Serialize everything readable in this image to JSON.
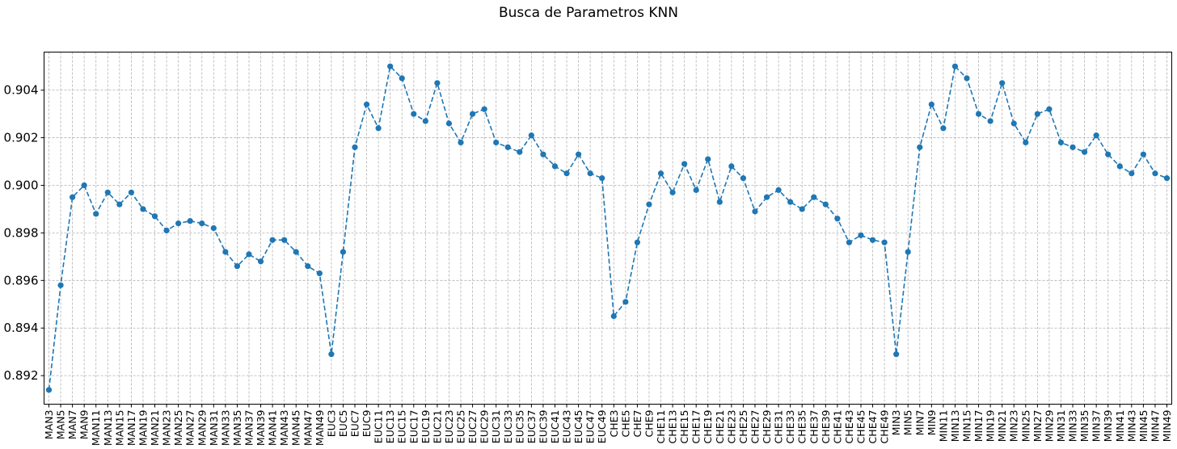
{
  "chart_data": {
    "type": "line",
    "title": "Busca de Parametros KNN",
    "xlabel": "",
    "ylabel": "",
    "ylim": [
      0.8908,
      0.9056
    ],
    "yticks": [
      "0.892",
      "0.894",
      "0.896",
      "0.898",
      "0.900",
      "0.902",
      "0.904"
    ],
    "grid": true,
    "marker": "circle",
    "line_style": "dashed",
    "color": "#1f77b4",
    "categories": [
      "MAN3",
      "MAN5",
      "MAN7",
      "MAN9",
      "MAN11",
      "MAN13",
      "MAN15",
      "MAN17",
      "MAN19",
      "MAN21",
      "MAN23",
      "MAN25",
      "MAN27",
      "MAN29",
      "MAN31",
      "MAN33",
      "MAN35",
      "MAN37",
      "MAN39",
      "MAN41",
      "MAN43",
      "MAN45",
      "MAN47",
      "MAN49",
      "EUC3",
      "EUC5",
      "EUC7",
      "EUC9",
      "EUC11",
      "EUC13",
      "EUC15",
      "EUC17",
      "EUC19",
      "EUC21",
      "EUC23",
      "EUC25",
      "EUC27",
      "EUC29",
      "EUC31",
      "EUC33",
      "EUC35",
      "EUC37",
      "EUC39",
      "EUC41",
      "EUC43",
      "EUC45",
      "EUC47",
      "EUC49",
      "CHE3",
      "CHE5",
      "CHE7",
      "CHE9",
      "CHE11",
      "CHE13",
      "CHE15",
      "CHE17",
      "CHE19",
      "CHE21",
      "CHE23",
      "CHE25",
      "CHE27",
      "CHE29",
      "CHE31",
      "CHE33",
      "CHE35",
      "CHE37",
      "CHE39",
      "CHE41",
      "CHE43",
      "CHE45",
      "CHE47",
      "CHE49",
      "MIN3",
      "MIN5",
      "MIN7",
      "MIN9",
      "MIN11",
      "MIN13",
      "MIN15",
      "MIN17",
      "MIN19",
      "MIN21",
      "MIN23",
      "MIN25",
      "MIN27",
      "MIN29",
      "MIN31",
      "MIN33",
      "MIN35",
      "MIN37",
      "MIN39",
      "MIN41",
      "MIN43",
      "MIN45",
      "MIN47",
      "MIN49"
    ],
    "values": [
      0.8914,
      0.8958,
      0.8995,
      0.9,
      0.8988,
      0.8997,
      0.8992,
      0.8997,
      0.899,
      0.8987,
      0.8981,
      0.8984,
      0.8985,
      0.8984,
      0.8982,
      0.8972,
      0.8966,
      0.8971,
      0.8968,
      0.8977,
      0.8977,
      0.8972,
      0.8966,
      0.8963,
      0.8929,
      0.8972,
      0.9016,
      0.9034,
      0.9024,
      0.905,
      0.9045,
      0.903,
      0.9027,
      0.9043,
      0.9026,
      0.9018,
      0.903,
      0.9032,
      0.9018,
      0.9016,
      0.9014,
      0.9021,
      0.9013,
      0.9008,
      0.9005,
      0.9013,
      0.9005,
      0.9003,
      0.8945,
      0.8951,
      0.8976,
      0.8992,
      0.9005,
      0.8997,
      0.9009,
      0.8998,
      0.9011,
      0.8993,
      0.9008,
      0.9003,
      0.8989,
      0.8995,
      0.8998,
      0.8993,
      0.899,
      0.8995,
      0.8992,
      0.8986,
      0.8976,
      0.8979,
      0.8977,
      0.8976,
      0.8929,
      0.8972,
      0.9016,
      0.9034,
      0.9024,
      0.905,
      0.9045,
      0.903,
      0.9027,
      0.9043,
      0.9026,
      0.9018,
      0.903,
      0.9032,
      0.9018,
      0.9016,
      0.9014,
      0.9021,
      0.9013,
      0.9008,
      0.9005,
      0.9013,
      0.9005,
      0.9003
    ]
  }
}
